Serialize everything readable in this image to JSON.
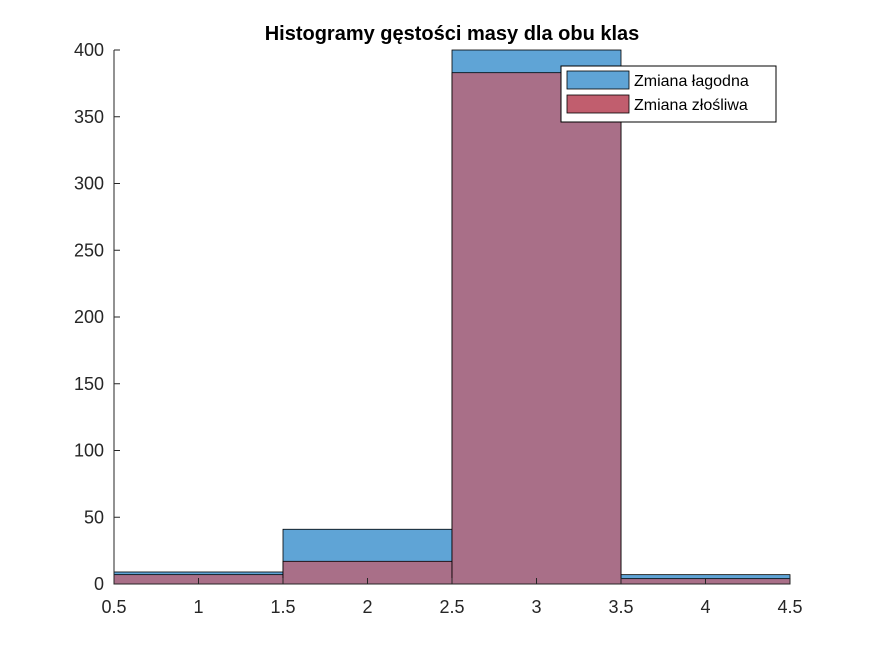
{
  "chart_data": {
    "type": "bar",
    "title": "Histogramy gęstości masy dla obu klas",
    "xlabel": "",
    "ylabel": "",
    "xlim": [
      0.5,
      4.5
    ],
    "ylim": [
      0,
      400
    ],
    "xticks": [
      "0.5",
      "1",
      "1.5",
      "2",
      "2.5",
      "3",
      "3.5",
      "4",
      "4.5"
    ],
    "yticks": [
      "0",
      "50",
      "100",
      "150",
      "200",
      "250",
      "300",
      "350",
      "400"
    ],
    "bin_edges": [
      0.5,
      1.5,
      2.5,
      3.5,
      4.5
    ],
    "grid": false,
    "legend_position": "top-right",
    "series": [
      {
        "name": "Zmiana łagodna",
        "color": "#5FA4D6",
        "values": [
          9,
          41,
          417,
          7
        ]
      },
      {
        "name": "Zmiana złośliwa",
        "color": "#C15E6E",
        "values": [
          7,
          17,
          383,
          4
        ]
      }
    ]
  }
}
